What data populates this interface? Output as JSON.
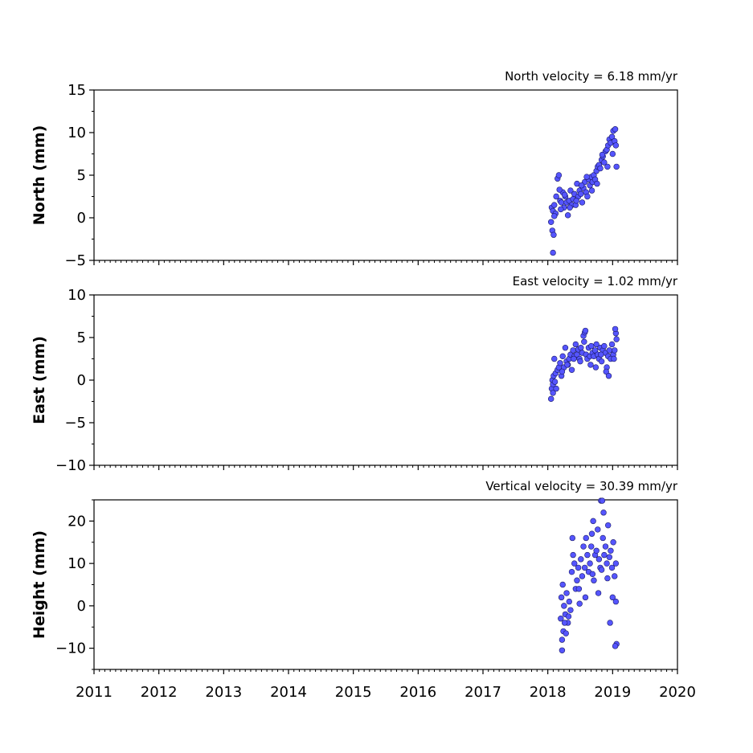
{
  "chart_data": [
    {
      "type": "scatter",
      "title": "North velocity = 6.18 mm/yr",
      "ylabel": "North (mm)",
      "xlim": [
        2011,
        2020
      ],
      "ylim": [
        -5,
        15
      ],
      "yticks": [
        -5,
        0,
        5,
        10,
        15
      ],
      "ytick_labels": [
        "−5",
        "0",
        "5",
        "10",
        "15"
      ],
      "marker_color": "#5555ff",
      "series": [
        {
          "x": [
            2018.05,
            2018.06,
            2018.07,
            2018.08,
            2018.09,
            2018.1,
            2018.12,
            2018.13,
            2018.15,
            2018.17,
            2018.19,
            2018.21,
            2018.23,
            2018.25,
            2018.27,
            2018.29,
            2018.31,
            2018.33,
            2018.35,
            2018.37,
            2018.39,
            2018.41,
            2018.43,
            2018.45,
            2018.47,
            2018.49,
            2018.51,
            2018.53,
            2018.55,
            2018.57,
            2018.59,
            2018.61,
            2018.63,
            2018.65,
            2018.67,
            2018.69,
            2018.71,
            2018.73,
            2018.75,
            2018.77,
            2018.79,
            2018.81,
            2018.83,
            2018.85,
            2018.87,
            2018.89,
            2018.91,
            2018.93,
            2018.95,
            2018.97,
            2018.99,
            2019.01,
            2019.03,
            2019.05,
            2019.06,
            2018.08,
            2018.1,
            2018.18,
            2018.2,
            2018.26,
            2018.34,
            2018.44,
            2018.52,
            2018.6,
            2018.68,
            2018.76,
            2018.84,
            2018.92,
            2019.0,
            2019.04
          ],
          "y": [
            -0.5,
            1.2,
            -1.5,
            0.8,
            -2.0,
            1.5,
            0.5,
            2.5,
            4.6,
            5.0,
            2.0,
            1.8,
            3.0,
            1.2,
            2.5,
            1.8,
            0.3,
            2.0,
            3.2,
            1.5,
            2.2,
            2.8,
            1.5,
            4.0,
            2.5,
            3.2,
            2.8,
            1.8,
            3.5,
            4.2,
            3.0,
            2.5,
            4.5,
            3.8,
            4.8,
            4.2,
            5.0,
            4.5,
            5.5,
            6.0,
            6.2,
            5.8,
            6.8,
            7.2,
            6.5,
            7.8,
            8.0,
            8.5,
            9.2,
            8.8,
            9.5,
            10.2,
            9.0,
            8.5,
            6.0,
            -4.1,
            0.2,
            3.3,
            1.0,
            2.7,
            1.2,
            2.0,
            3.8,
            4.8,
            3.2,
            4.0,
            7.4,
            6.0,
            7.5,
            10.4
          ]
        }
      ]
    },
    {
      "type": "scatter",
      "title": "East velocity = 1.02 mm/yr",
      "ylabel": "East (mm)",
      "xlim": [
        2011,
        2020
      ],
      "ylim": [
        -10,
        10
      ],
      "yticks": [
        -10,
        -5,
        0,
        5,
        10
      ],
      "ytick_labels": [
        "−10",
        "−5",
        "0",
        "5",
        "10"
      ],
      "marker_color": "#5555ff",
      "series": [
        {
          "x": [
            2018.05,
            2018.06,
            2018.07,
            2018.08,
            2018.09,
            2018.1,
            2018.12,
            2018.13,
            2018.15,
            2018.17,
            2018.19,
            2018.21,
            2018.23,
            2018.25,
            2018.27,
            2018.29,
            2018.31,
            2018.33,
            2018.35,
            2018.37,
            2018.39,
            2018.41,
            2018.43,
            2018.45,
            2018.47,
            2018.49,
            2018.51,
            2018.53,
            2018.55,
            2018.57,
            2018.59,
            2018.61,
            2018.63,
            2018.65,
            2018.67,
            2018.69,
            2018.71,
            2018.73,
            2018.75,
            2018.77,
            2018.79,
            2018.81,
            2018.83,
            2018.85,
            2018.87,
            2018.89,
            2018.91,
            2018.93,
            2018.95,
            2018.97,
            2018.99,
            2019.01,
            2019.03,
            2019.05,
            2019.06,
            2018.08,
            2018.11,
            2018.22,
            2018.3,
            2018.4,
            2018.5,
            2018.56,
            2018.58,
            2018.66,
            2018.74,
            2018.82,
            2018.9,
            2018.94,
            2019.02,
            2019.04
          ],
          "y": [
            -2.2,
            -1.0,
            0.0,
            -1.5,
            0.5,
            2.5,
            0.8,
            -1.0,
            1.2,
            1.5,
            2.0,
            0.5,
            2.8,
            1.5,
            3.8,
            2.2,
            1.8,
            2.5,
            3.0,
            1.2,
            3.5,
            2.8,
            4.2,
            3.0,
            3.6,
            2.5,
            3.8,
            3.2,
            5.2,
            5.6,
            3.0,
            2.5,
            3.8,
            2.8,
            4.0,
            3.2,
            2.8,
            3.5,
            4.2,
            3.0,
            2.5,
            3.8,
            2.2,
            3.5,
            4.0,
            3.2,
            1.5,
            2.8,
            3.5,
            2.5,
            4.2,
            3.0,
            3.5,
            5.5,
            4.8,
            -0.5,
            -0.2,
            1.0,
            1.8,
            2.5,
            2.2,
            4.5,
            5.8,
            1.8,
            1.5,
            3.0,
            1.0,
            0.5,
            2.5,
            6.0
          ]
        }
      ]
    },
    {
      "type": "scatter",
      "title": "Vertical velocity = 30.39 mm/yr",
      "ylabel": "Height (mm)",
      "xlim": [
        2011,
        2020
      ],
      "ylim": [
        -15,
        25
      ],
      "yticks": [
        -10,
        0,
        10,
        20
      ],
      "ytick_labels": [
        "−10",
        "0",
        "10",
        "20"
      ],
      "marker_color": "#5555ff",
      "series": [
        {
          "x": [
            2018.2,
            2018.21,
            2018.22,
            2018.23,
            2018.24,
            2018.25,
            2018.27,
            2018.29,
            2018.31,
            2018.33,
            2018.35,
            2018.37,
            2018.39,
            2018.41,
            2018.43,
            2018.45,
            2018.47,
            2018.49,
            2018.51,
            2018.53,
            2018.55,
            2018.57,
            2018.59,
            2018.61,
            2018.63,
            2018.65,
            2018.67,
            2018.69,
            2018.71,
            2018.73,
            2018.75,
            2018.77,
            2018.79,
            2018.81,
            2018.83,
            2018.85,
            2018.87,
            2018.89,
            2018.91,
            2018.93,
            2018.95,
            2018.97,
            2018.99,
            2019.01,
            2019.03,
            2019.05,
            2019.06,
            2018.22,
            2018.26,
            2018.28,
            2018.32,
            2018.38,
            2018.48,
            2018.58,
            2018.68,
            2018.78,
            2018.82,
            2018.86,
            2018.92,
            2018.96,
            2019.0,
            2019.04,
            2019.05,
            2018.7,
            2018.84
          ],
          "y": [
            -3.0,
            2.0,
            -8.0,
            5.0,
            -6.0,
            0.0,
            -2.0,
            3.0,
            -4.0,
            1.0,
            -1.0,
            8.0,
            12.0,
            10.0,
            4.0,
            6.0,
            9.0,
            0.5,
            11.0,
            7.0,
            14.0,
            9.0,
            16.0,
            12.0,
            8.0,
            10.0,
            14.0,
            7.5,
            6.0,
            12.0,
            13.0,
            18.0,
            11.0,
            9.0,
            8.5,
            16.0,
            12.0,
            14.0,
            10.0,
            19.0,
            11.5,
            13.0,
            9.0,
            15.0,
            7.0,
            10.0,
            -9.0,
            -10.5,
            -4.0,
            -6.5,
            -2.5,
            16.0,
            4.0,
            2.0,
            17.0,
            3.0,
            24.8,
            22.0,
            6.5,
            -4.0,
            2.0,
            -9.5,
            1.0,
            20.0,
            24.8
          ]
        }
      ]
    }
  ],
  "xaxis": {
    "ticks": [
      2011,
      2012,
      2013,
      2014,
      2015,
      2016,
      2017,
      2018,
      2019,
      2020
    ],
    "tick_labels": [
      "2011",
      "2012",
      "2013",
      "2014",
      "2015",
      "2016",
      "2017",
      "2018",
      "2019",
      "2020"
    ]
  }
}
